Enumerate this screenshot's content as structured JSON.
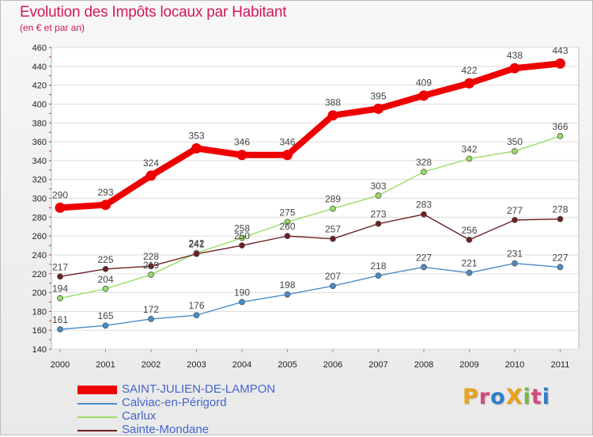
{
  "title": "Evolution des Impôts locaux par Habitant",
  "subtitle": "(en € et par an)",
  "logo": {
    "text": "ProXiti",
    "colors": [
      "#e8a316",
      "#d44a7a",
      "#2f7fc9",
      "#e8a316",
      "#7ab648",
      "#d44a7a",
      "#2f7fc9"
    ]
  },
  "chart_data": {
    "type": "line",
    "x": [
      "2000",
      "2001",
      "2002",
      "2003",
      "2004",
      "2005",
      "2006",
      "2007",
      "2008",
      "2009",
      "2010",
      "2011"
    ],
    "ylim": [
      140,
      460
    ],
    "yticks": [
      140,
      160,
      180,
      200,
      220,
      240,
      260,
      280,
      300,
      320,
      340,
      360,
      380,
      400,
      420,
      440,
      460
    ],
    "grid": "horizontal",
    "legend": "bottom-left",
    "series": [
      {
        "name": "SAINT-JULIEN-DE-LAMPON",
        "color": "#ee0000",
        "values": [
          290,
          293,
          324,
          353,
          346,
          346,
          388,
          395,
          409,
          422,
          438,
          443
        ]
      },
      {
        "name": "Calviac-en-Périgord",
        "color": "#4a8cc9",
        "values": [
          161,
          165,
          172,
          176,
          190,
          198,
          207,
          218,
          227,
          221,
          231,
          227
        ]
      },
      {
        "name": "Carlux",
        "color": "#99dd66",
        "values": [
          194,
          204,
          219,
          242,
          258,
          275,
          289,
          303,
          328,
          342,
          350,
          366
        ]
      },
      {
        "name": "Sainte-Mondane",
        "color": "#6b1f1f",
        "values": [
          217,
          225,
          228,
          241,
          250,
          260,
          257,
          273,
          283,
          256,
          277,
          278
        ]
      }
    ]
  }
}
